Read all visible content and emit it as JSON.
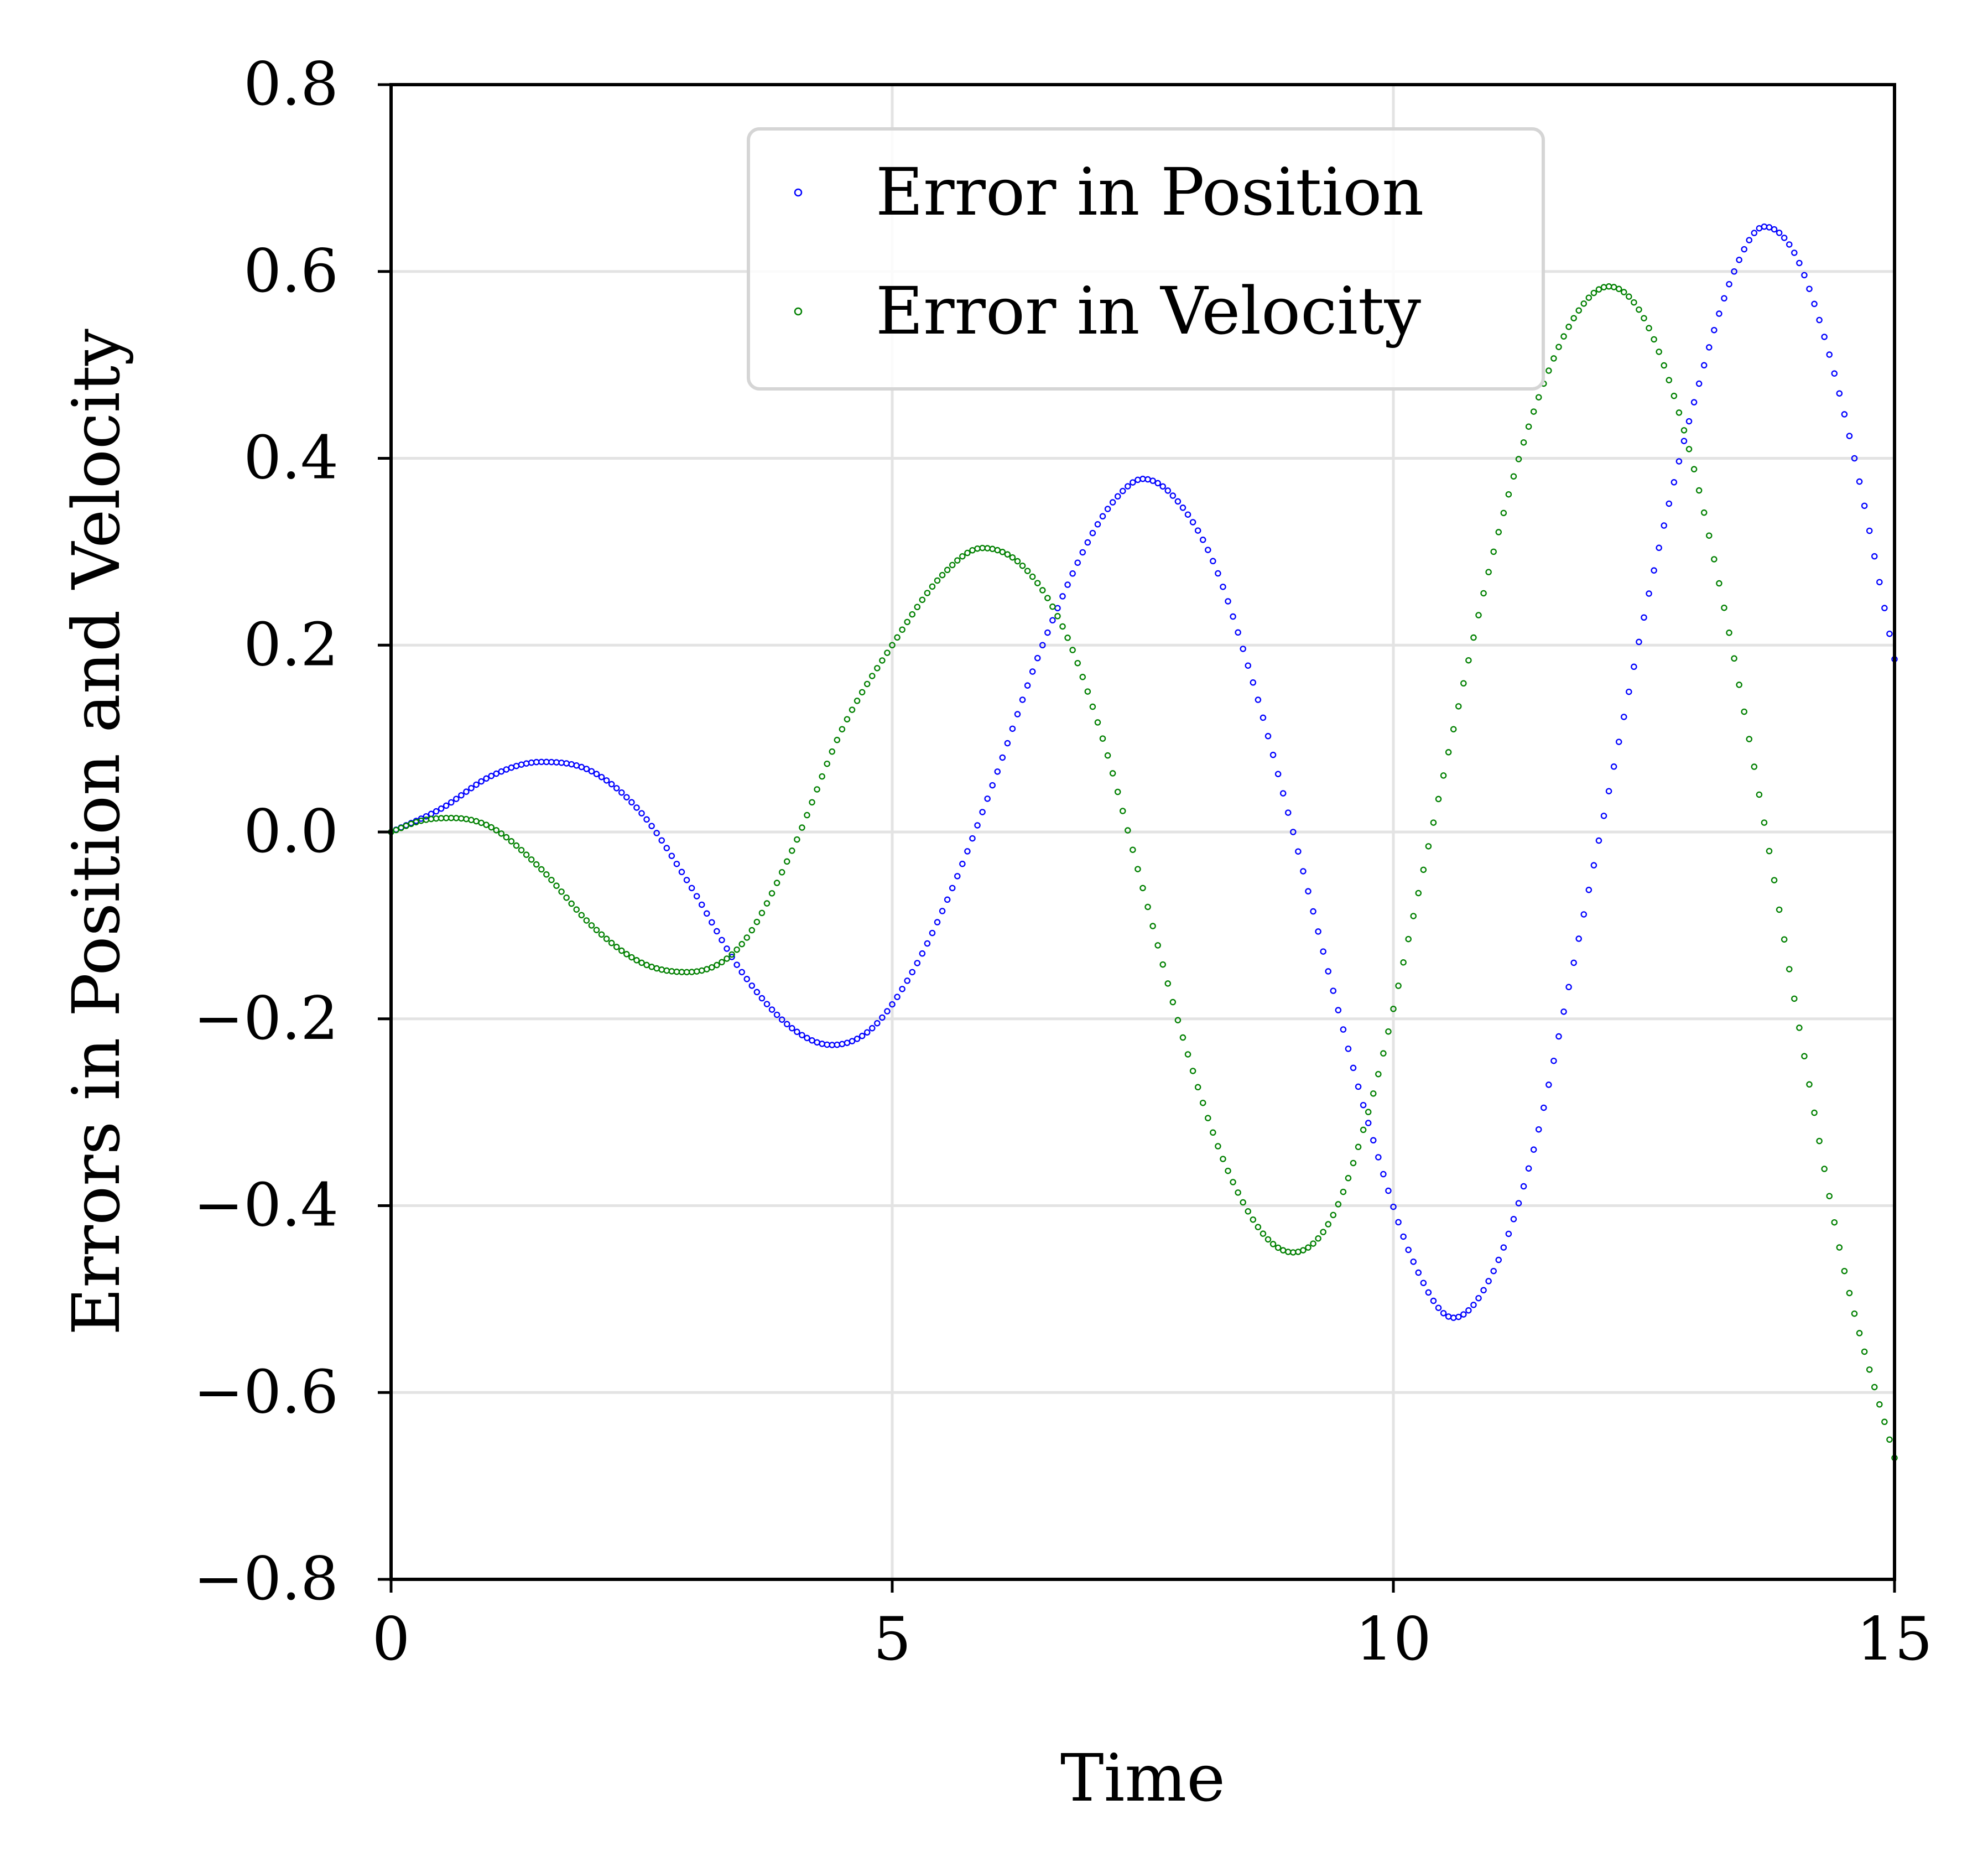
{
  "chart_data": {
    "type": "scatter",
    "title": "",
    "xlabel": "Time",
    "ylabel": "Errors in Position and Velocity",
    "xlim": [
      0,
      15
    ],
    "ylim": [
      -0.8,
      0.8
    ],
    "x_ticks": [
      0,
      5,
      10,
      15
    ],
    "x_tick_labels": [
      "0",
      "5",
      "10",
      "15"
    ],
    "y_ticks": [
      0.8,
      0.6,
      0.4,
      0.2,
      0.0,
      -0.2,
      -0.4,
      -0.6,
      -0.8
    ],
    "y_tick_labels": [
      "0.8",
      "0.6",
      "0.4",
      "0.2",
      "0.0",
      "−0.2",
      "−0.4",
      "−0.6",
      "−0.8"
    ],
    "grid": true,
    "legend_position": "upper-center",
    "x_step": 0.05,
    "series": [
      {
        "name": "Error in Position",
        "color": "#0000ff",
        "marker": "hollow-circle",
        "points": [
          [
            0,
            0.0
          ],
          [
            0.5,
            0.025
          ],
          [
            1.0,
            0.06
          ],
          [
            1.5,
            0.075
          ],
          [
            2.0,
            0.065
          ],
          [
            2.5,
            0.02
          ],
          [
            3.0,
            -0.06
          ],
          [
            3.5,
            -0.15
          ],
          [
            4.0,
            -0.21
          ],
          [
            4.4,
            -0.228
          ],
          [
            4.8,
            -0.21
          ],
          [
            5.2,
            -0.15
          ],
          [
            5.6,
            -0.06
          ],
          [
            6.0,
            0.05
          ],
          [
            6.5,
            0.2
          ],
          [
            7.0,
            0.32
          ],
          [
            7.3,
            0.365
          ],
          [
            7.5,
            0.378
          ],
          [
            7.8,
            0.36
          ],
          [
            8.2,
            0.29
          ],
          [
            8.6,
            0.16
          ],
          [
            9.0,
            0.0
          ],
          [
            9.4,
            -0.17
          ],
          [
            9.8,
            -0.33
          ],
          [
            10.2,
            -0.46
          ],
          [
            10.6,
            -0.52
          ],
          [
            11.0,
            -0.47
          ],
          [
            11.4,
            -0.34
          ],
          [
            11.8,
            -0.14
          ],
          [
            12.2,
            0.07
          ],
          [
            12.6,
            0.28
          ],
          [
            13.0,
            0.46
          ],
          [
            13.4,
            0.6
          ],
          [
            13.7,
            0.648
          ],
          [
            14.0,
            0.62
          ],
          [
            14.3,
            0.53
          ],
          [
            14.6,
            0.4
          ],
          [
            15.0,
            0.185
          ]
        ]
      },
      {
        "name": "Error in Velocity",
        "color": "#008000",
        "marker": "hollow-circle",
        "points": [
          [
            0,
            0.0
          ],
          [
            0.3,
            0.012
          ],
          [
            0.6,
            0.015
          ],
          [
            1.0,
            0.005
          ],
          [
            1.5,
            -0.04
          ],
          [
            2.0,
            -0.1
          ],
          [
            2.5,
            -0.14
          ],
          [
            2.95,
            -0.15
          ],
          [
            3.5,
            -0.12
          ],
          [
            4.0,
            -0.02
          ],
          [
            4.5,
            0.11
          ],
          [
            5.0,
            0.2
          ],
          [
            5.5,
            0.275
          ],
          [
            5.9,
            0.304
          ],
          [
            6.3,
            0.285
          ],
          [
            6.7,
            0.22
          ],
          [
            7.1,
            0.1
          ],
          [
            7.5,
            -0.06
          ],
          [
            7.9,
            -0.22
          ],
          [
            8.3,
            -0.35
          ],
          [
            8.7,
            -0.43
          ],
          [
            9.0,
            -0.45
          ],
          [
            9.4,
            -0.41
          ],
          [
            9.8,
            -0.28
          ],
          [
            10.2,
            -0.09
          ],
          [
            10.6,
            0.11
          ],
          [
            11.0,
            0.3
          ],
          [
            11.4,
            0.45
          ],
          [
            11.8,
            0.55
          ],
          [
            12.15,
            0.584
          ],
          [
            12.5,
            0.55
          ],
          [
            12.9,
            0.43
          ],
          [
            13.3,
            0.24
          ],
          [
            13.7,
            0.01
          ],
          [
            14.1,
            -0.24
          ],
          [
            14.5,
            -0.47
          ],
          [
            15.0,
            -0.67
          ]
        ]
      }
    ]
  }
}
